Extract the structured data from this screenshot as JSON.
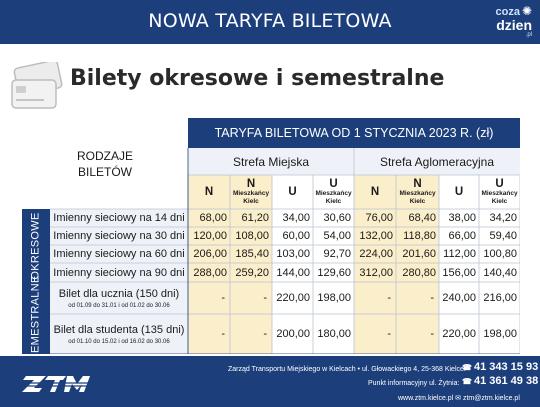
{
  "header": {
    "title": "NOWA TARYFA BILETOWA",
    "logo_top": "coza",
    "logo_main": "dzien",
    "logo_sub": ".pl"
  },
  "heading": "Bilety okresowe i semestralne",
  "table": {
    "top_header": "TARYFA BILETOWA OD 1 STYCZNIA 2023 R. (zł)",
    "rodzaje": "RODZAJE\nBILETÓW",
    "zones": [
      "Strefa Miejska",
      "Strefa Aglomeracyjna"
    ],
    "col_headers": [
      {
        "main": "N",
        "sub": ""
      },
      {
        "main": "N",
        "sub": "Mieszkańcy Kielc"
      },
      {
        "main": "U",
        "sub": ""
      },
      {
        "main": "U",
        "sub": "Mieszkańcy Kielc"
      },
      {
        "main": "N",
        "sub": ""
      },
      {
        "main": "N",
        "sub": "Mieszkańcy Kielc"
      },
      {
        "main": "U",
        "sub": ""
      },
      {
        "main": "U",
        "sub": "Mieszkańcy Kielc"
      }
    ],
    "groups": [
      {
        "label": "OKRESOWE"
      },
      {
        "label": "SEMESTRALNE"
      }
    ],
    "rows": [
      {
        "name": "Imienny sieciowy na 14 dni",
        "sub": "",
        "values": [
          "68,00",
          "61,20",
          "34,00",
          "30,60",
          "76,00",
          "68,40",
          "38,00",
          "34,20"
        ]
      },
      {
        "name": "Imienny sieciowy na 30 dni",
        "sub": "",
        "values": [
          "120,00",
          "108,00",
          "60,00",
          "54,00",
          "132,00",
          "118,80",
          "66,00",
          "59,40"
        ]
      },
      {
        "name": "Imienny sieciowy na 60 dni",
        "sub": "",
        "values": [
          "206,00",
          "185,40",
          "103,00",
          "92,70",
          "224,00",
          "201,60",
          "112,00",
          "100,80"
        ]
      },
      {
        "name": "Imienny sieciowy na 90 dni",
        "sub": "",
        "values": [
          "288,00",
          "259,20",
          "144,00",
          "129,60",
          "312,00",
          "280,80",
          "156,00",
          "140,40"
        ]
      },
      {
        "name": "Bilet dla ucznia (150 dni)",
        "sub": "od 01.09 do 31.01 i od 01.02 do 30.06",
        "values": [
          "-",
          "-",
          "220,00",
          "198,00",
          "-",
          "-",
          "240,00",
          "216,00"
        ]
      },
      {
        "name": "Bilet dla studenta (135 dni)",
        "sub": "od 01.10 do 15.02 i od 16.02 do 30.06",
        "values": [
          "-",
          "-",
          "200,00",
          "180,00",
          "-",
          "-",
          "220,00",
          "198,00"
        ]
      }
    ]
  },
  "footer": {
    "brand": "ZTM",
    "line1": "Zarząd Transportu Miejskiego w Kielcach  • ul. Głowackiego 4, 25-368 Kielce:",
    "phone1": "41 343 15 93",
    "line2": "Punkt informacyjny ul. Żytnia:",
    "phone2": "41 361 49 38",
    "line3": "www.ztm.kielce.pl  ✉ ztm@ztm.kielce.pl"
  },
  "colors": {
    "navy": "#1c3f7c",
    "yellow": "#fbeecb",
    "light": "#eef2f8"
  }
}
